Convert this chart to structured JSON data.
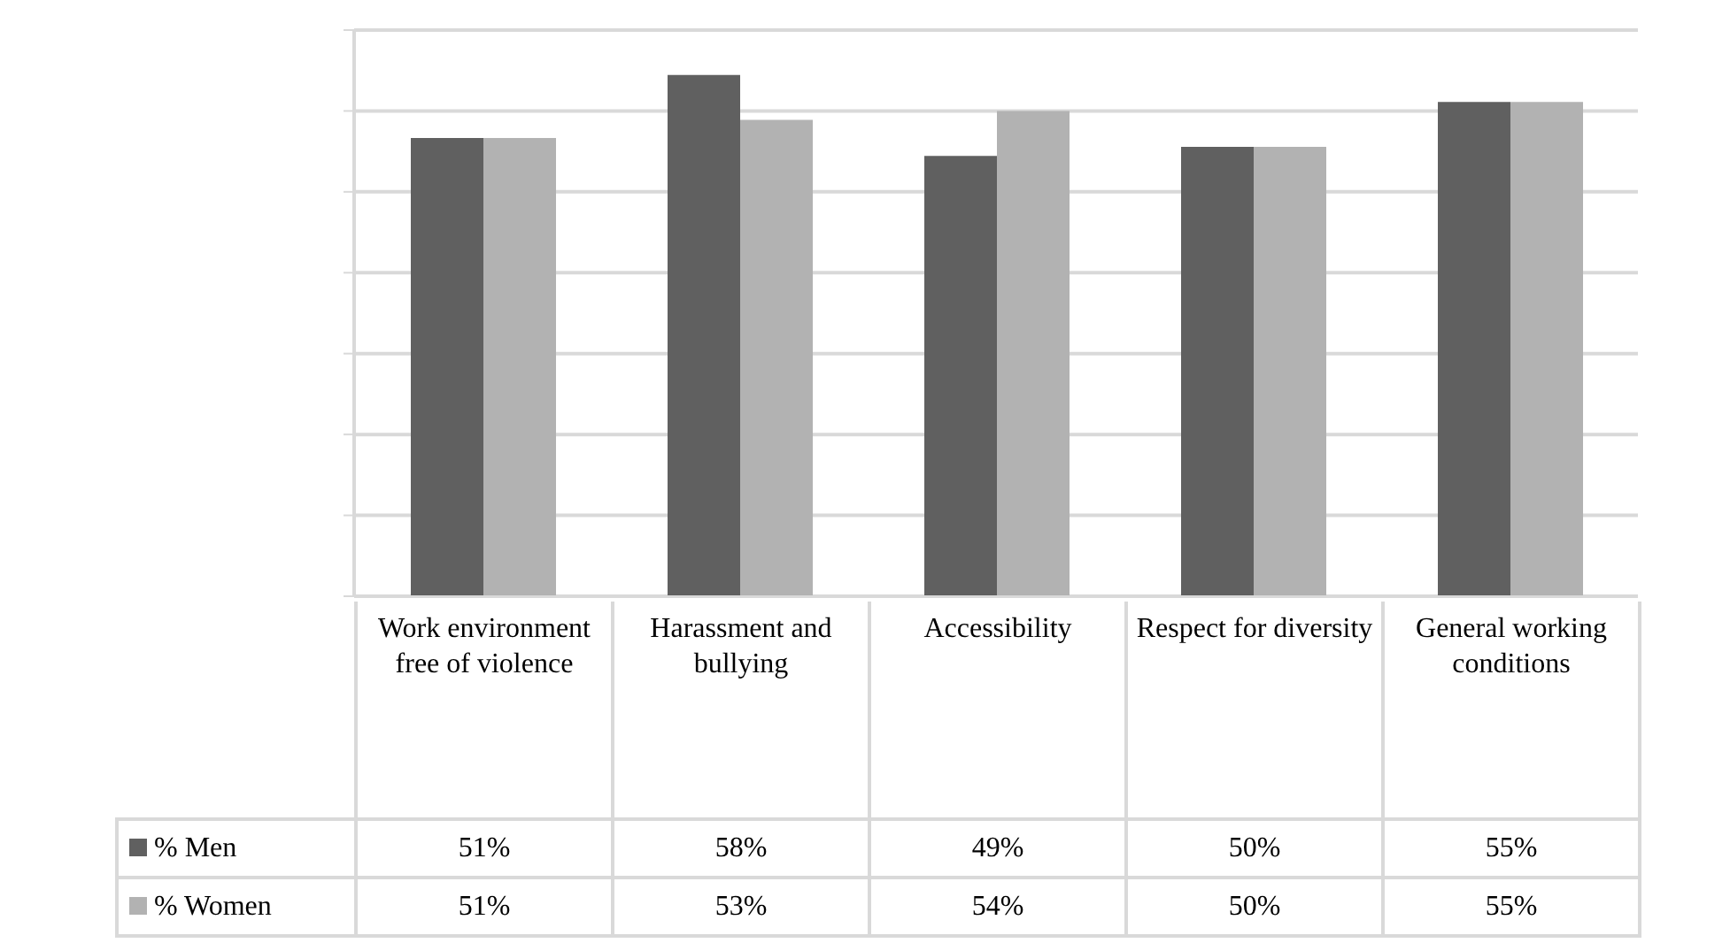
{
  "chart_data": {
    "type": "bar",
    "categories": [
      "Work environment free of violence",
      "Harassment and bullying",
      "Accessibility",
      "Respect for diversity",
      "General working conditions"
    ],
    "series": [
      {
        "name": "% Men",
        "color": "#606060",
        "values": [
          51,
          58,
          49,
          50,
          55
        ],
        "value_labels": [
          "51%",
          "58%",
          "49%",
          "50%",
          "55%"
        ]
      },
      {
        "name": "% Women",
        "color": "#b2b2b2",
        "values": [
          51,
          53,
          54,
          50,
          55
        ],
        "value_labels": [
          "51%",
          "53%",
          "54%",
          "50%",
          "55%"
        ]
      }
    ],
    "tick_labels": "x",
    "grid": "y",
    "legend": "bottom left"
  }
}
